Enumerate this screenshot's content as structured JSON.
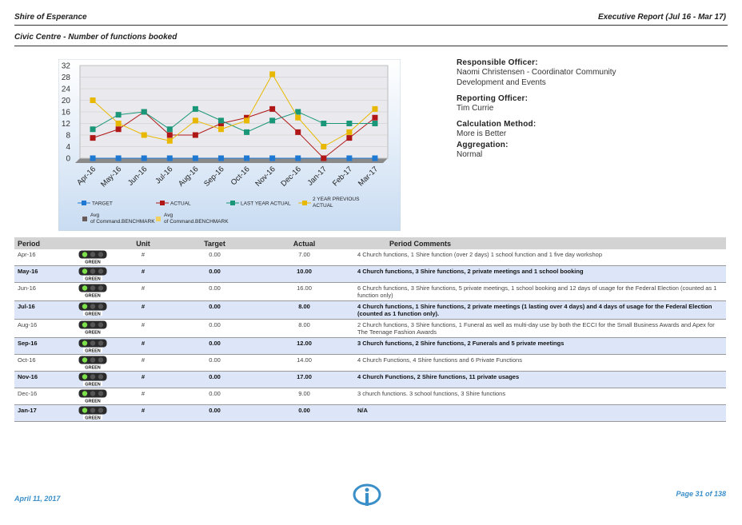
{
  "header": {
    "org": "Shire of Esperance",
    "report": "Executive Report (Jul 16 - Mar 17)",
    "subtitle": "Civic Centre - Number of functions booked"
  },
  "info": {
    "responsible_label": "Responsible Officer:",
    "responsible_value": "Naomi Christensen - Coordinator Community Development and Events",
    "reporting_label": "Reporting Officer:",
    "reporting_value": "Tim Currie",
    "calc_label": "Calculation Method:",
    "calc_value": "More is Better",
    "agg_label": "Aggregation:",
    "agg_value": "Normal"
  },
  "chart_data": {
    "type": "line",
    "categories": [
      "Apr-16",
      "May-16",
      "Jun-16",
      "Jul-16",
      "Aug-16",
      "Sep-16",
      "Oct-16",
      "Nov-16",
      "Dec-16",
      "Jan-17",
      "Feb-17",
      "Mar-17"
    ],
    "yticks": [
      0,
      4,
      8,
      12,
      16,
      20,
      24,
      28,
      32
    ],
    "ylim": [
      0,
      32
    ],
    "series": [
      {
        "name": "TARGET",
        "color": "#1f78d1",
        "values": [
          0,
          0,
          0,
          0,
          0,
          0,
          0,
          0,
          0,
          0,
          0,
          0
        ]
      },
      {
        "name": "ACTUAL",
        "color": "#b01818",
        "values": [
          7,
          10,
          16,
          8,
          8,
          12,
          14,
          17,
          9,
          0,
          7,
          14
        ]
      },
      {
        "name": "LAST YEAR ACTUAL",
        "color": "#1a9678",
        "values": [
          10,
          15,
          16,
          10,
          17,
          13,
          9,
          13,
          16,
          12,
          12,
          12
        ]
      },
      {
        "name": "2 YEAR PREVIOUS ACTUAL",
        "color": "#e8b800",
        "values": [
          20,
          12,
          8,
          6,
          13,
          10,
          13,
          29,
          14,
          4,
          9,
          17
        ]
      }
    ],
    "benchmarks": [
      {
        "name": "Avg of Command.BENCHMARK",
        "color": "#6a5a5a"
      },
      {
        "name": "Avg of Command.BENCHMARK",
        "color": "#f0d060"
      }
    ]
  },
  "table": {
    "headers": {
      "period": "Period",
      "unit": "Unit",
      "target": "Target",
      "actual": "Actual",
      "comments": "Period Comments"
    },
    "status_label": "GREEN",
    "rows": [
      {
        "period": "Apr-16",
        "unit": "#",
        "target": "0.00",
        "actual": "7.00",
        "comments": "4 Church functions, 1 Shire function (over 2 days) 1 school function and 1 five day workshop"
      },
      {
        "period": "May-16",
        "unit": "#",
        "target": "0.00",
        "actual": "10.00",
        "comments": "4 Church functions, 3 Shire functions, 2 private meetings and 1 school booking"
      },
      {
        "period": "Jun-16",
        "unit": "#",
        "target": "0.00",
        "actual": "16.00",
        "comments": "6 Church functions, 3 Shire functions, 5 private meetings, 1 school booking and 12 days of usage for the Federal Election (counted as 1 function only)"
      },
      {
        "period": "Jul-16",
        "unit": "#",
        "target": "0.00",
        "actual": "8.00",
        "comments": "4 Church functions, 1 Shire functions, 2 private meetings (1 lasting over 4 days) and 4 days of usage for the Federal Election (counted as 1 function only)."
      },
      {
        "period": "Aug-16",
        "unit": "#",
        "target": "0.00",
        "actual": "8.00",
        "comments": "2 Church functions, 3 Shire functions, 1 Funeral as well as multi-day use by both the ECCI for the Small Business Awards and Apex for The Teenage Fashion Awards"
      },
      {
        "period": "Sep-16",
        "unit": "#",
        "target": "0.00",
        "actual": "12.00",
        "comments": "3 Church functions, 2 Shire functions, 2 Funerals and 5 private meetings"
      },
      {
        "period": "Oct-16",
        "unit": "#",
        "target": "0.00",
        "actual": "14.00",
        "comments": "4 Church Functions, 4 Shire functions and 6 Private Functions"
      },
      {
        "period": "Nov-16",
        "unit": "#",
        "target": "0.00",
        "actual": "17.00",
        "comments": "4 Church Functions, 2 Shire functions, 11 private usages"
      },
      {
        "period": "Dec-16",
        "unit": "#",
        "target": "0.00",
        "actual": "9.00",
        "comments": "3 church functions. 3 school functions, 3 Shire functions"
      },
      {
        "period": "Jan-17",
        "unit": "#",
        "target": "0.00",
        "actual": "0.00",
        "comments": "N/A"
      }
    ]
  },
  "footer": {
    "date": "April 11, 2017",
    "page": "Page 31 of 138"
  }
}
